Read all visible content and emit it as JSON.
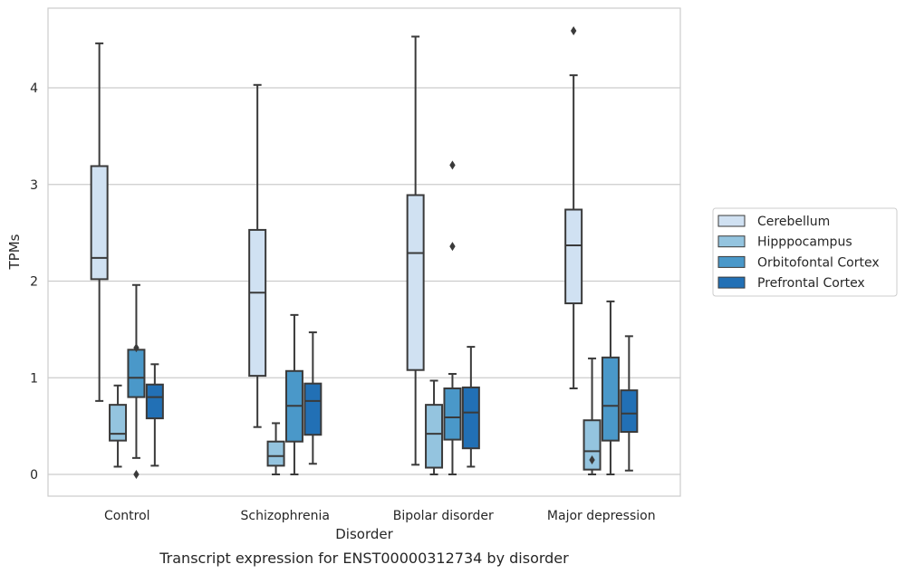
{
  "chart_data": {
    "type": "box",
    "caption": "Transcript expression for ENST00000312734 by disorder",
    "xlabel": "Disorder",
    "ylabel": "TPMs",
    "ylim": [
      -0.22,
      4.83
    ],
    "yticks": [
      0,
      1,
      2,
      3,
      4
    ],
    "grid": true,
    "legend_position": "right",
    "categories": [
      "Control",
      "Schizophrenia",
      "Bipolar disorder",
      "Major depression"
    ],
    "series": [
      {
        "name": "Cerebellum",
        "color": "#d0e1f2",
        "boxes": [
          {
            "whisker_low": 0.76,
            "q1": 2.02,
            "median": 2.24,
            "q3": 3.19,
            "whisker_high": 4.46,
            "outliers": []
          },
          {
            "whisker_low": 0.49,
            "q1": 1.02,
            "median": 1.88,
            "q3": 2.53,
            "whisker_high": 4.03,
            "outliers": []
          },
          {
            "whisker_low": 0.1,
            "q1": 1.08,
            "median": 2.29,
            "q3": 2.89,
            "whisker_high": 4.53,
            "outliers": []
          },
          {
            "whisker_low": 0.89,
            "q1": 1.77,
            "median": 2.37,
            "q3": 2.74,
            "whisker_high": 4.13,
            "outliers": [
              4.59
            ]
          }
        ]
      },
      {
        "name": "Hipppocampus",
        "color": "#94c4df",
        "boxes": [
          {
            "whisker_low": 0.08,
            "q1": 0.35,
            "median": 0.42,
            "q3": 0.72,
            "whisker_high": 0.92,
            "outliers": []
          },
          {
            "whisker_low": 0.0,
            "q1": 0.09,
            "median": 0.19,
            "q3": 0.34,
            "whisker_high": 0.53,
            "outliers": []
          },
          {
            "whisker_low": 0.0,
            "q1": 0.07,
            "median": 0.42,
            "q3": 0.72,
            "whisker_high": 0.97,
            "outliers": []
          },
          {
            "whisker_low": 0.0,
            "q1": 0.05,
            "median": 0.24,
            "q3": 0.56,
            "whisker_high": 1.2,
            "outliers": [
              0.15
            ]
          }
        ]
      },
      {
        "name": "Orbitofontal Cortex",
        "color": "#4a98c9",
        "boxes": [
          {
            "whisker_low": 0.17,
            "q1": 0.8,
            "median": 1.0,
            "q3": 1.29,
            "whisker_high": 1.96,
            "outliers": [
              1.31,
              0.0
            ]
          },
          {
            "whisker_low": 0.0,
            "q1": 0.34,
            "median": 0.71,
            "q3": 1.07,
            "whisker_high": 1.65,
            "outliers": []
          },
          {
            "whisker_low": 0.0,
            "q1": 0.36,
            "median": 0.59,
            "q3": 0.89,
            "whisker_high": 1.04,
            "outliers": [
              3.2,
              2.36
            ]
          },
          {
            "whisker_low": 0.0,
            "q1": 0.35,
            "median": 0.71,
            "q3": 1.21,
            "whisker_high": 1.79,
            "outliers": []
          }
        ]
      },
      {
        "name": "Prefrontal Cortex",
        "color": "#2270b5",
        "boxes": [
          {
            "whisker_low": 0.09,
            "q1": 0.58,
            "median": 0.8,
            "q3": 0.93,
            "whisker_high": 1.14,
            "outliers": []
          },
          {
            "whisker_low": 0.11,
            "q1": 0.41,
            "median": 0.76,
            "q3": 0.94,
            "whisker_high": 1.47,
            "outliers": []
          },
          {
            "whisker_low": 0.08,
            "q1": 0.27,
            "median": 0.64,
            "q3": 0.9,
            "whisker_high": 1.32,
            "outliers": []
          },
          {
            "whisker_low": 0.04,
            "q1": 0.44,
            "median": 0.63,
            "q3": 0.87,
            "whisker_high": 1.43,
            "outliers": []
          }
        ]
      }
    ]
  }
}
